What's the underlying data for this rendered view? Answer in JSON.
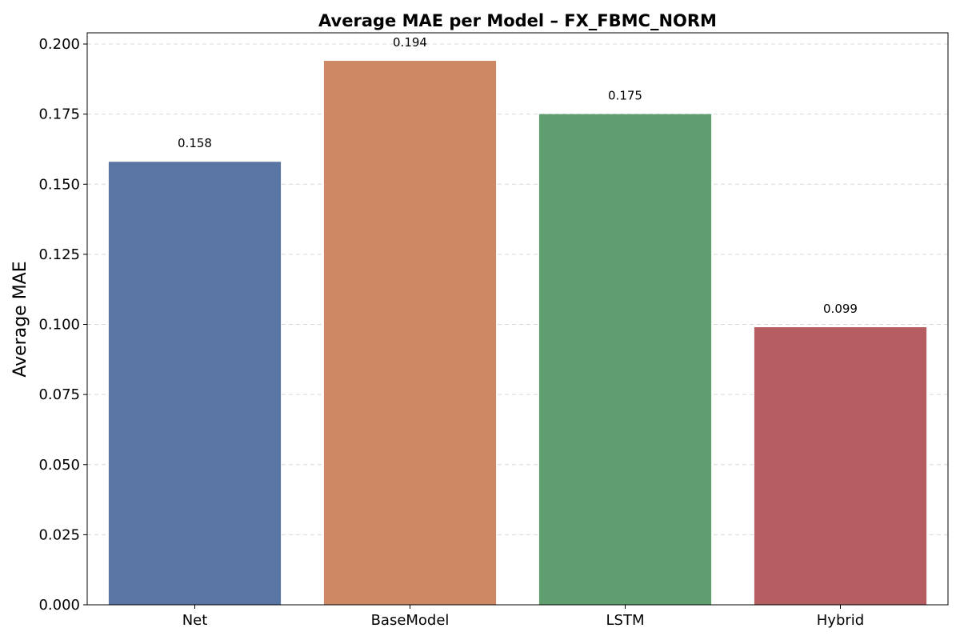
{
  "chart_data": {
    "type": "bar",
    "title": "Average MAE per Model – FX_FBMC_NORM",
    "xlabel": "",
    "ylabel": "Average MAE",
    "categories": [
      "Net",
      "BaseModel",
      "LSTM",
      "Hybrid"
    ],
    "values": [
      0.158,
      0.194,
      0.175,
      0.099
    ],
    "data_labels": [
      "0.158",
      "0.194",
      "0.175",
      "0.099"
    ],
    "colors": [
      "#5875a4",
      "#cc8963",
      "#5f9e6e",
      "#b55d60"
    ],
    "ylim": [
      0,
      0.204
    ],
    "yticks": [
      0.0,
      0.025,
      0.05,
      0.075,
      0.1,
      0.125,
      0.15,
      0.175,
      0.2
    ],
    "ytick_labels": [
      "0.000",
      "0.025",
      "0.050",
      "0.075",
      "0.100",
      "0.125",
      "0.150",
      "0.175",
      "0.200"
    ],
    "grid": true,
    "legend": "none"
  }
}
